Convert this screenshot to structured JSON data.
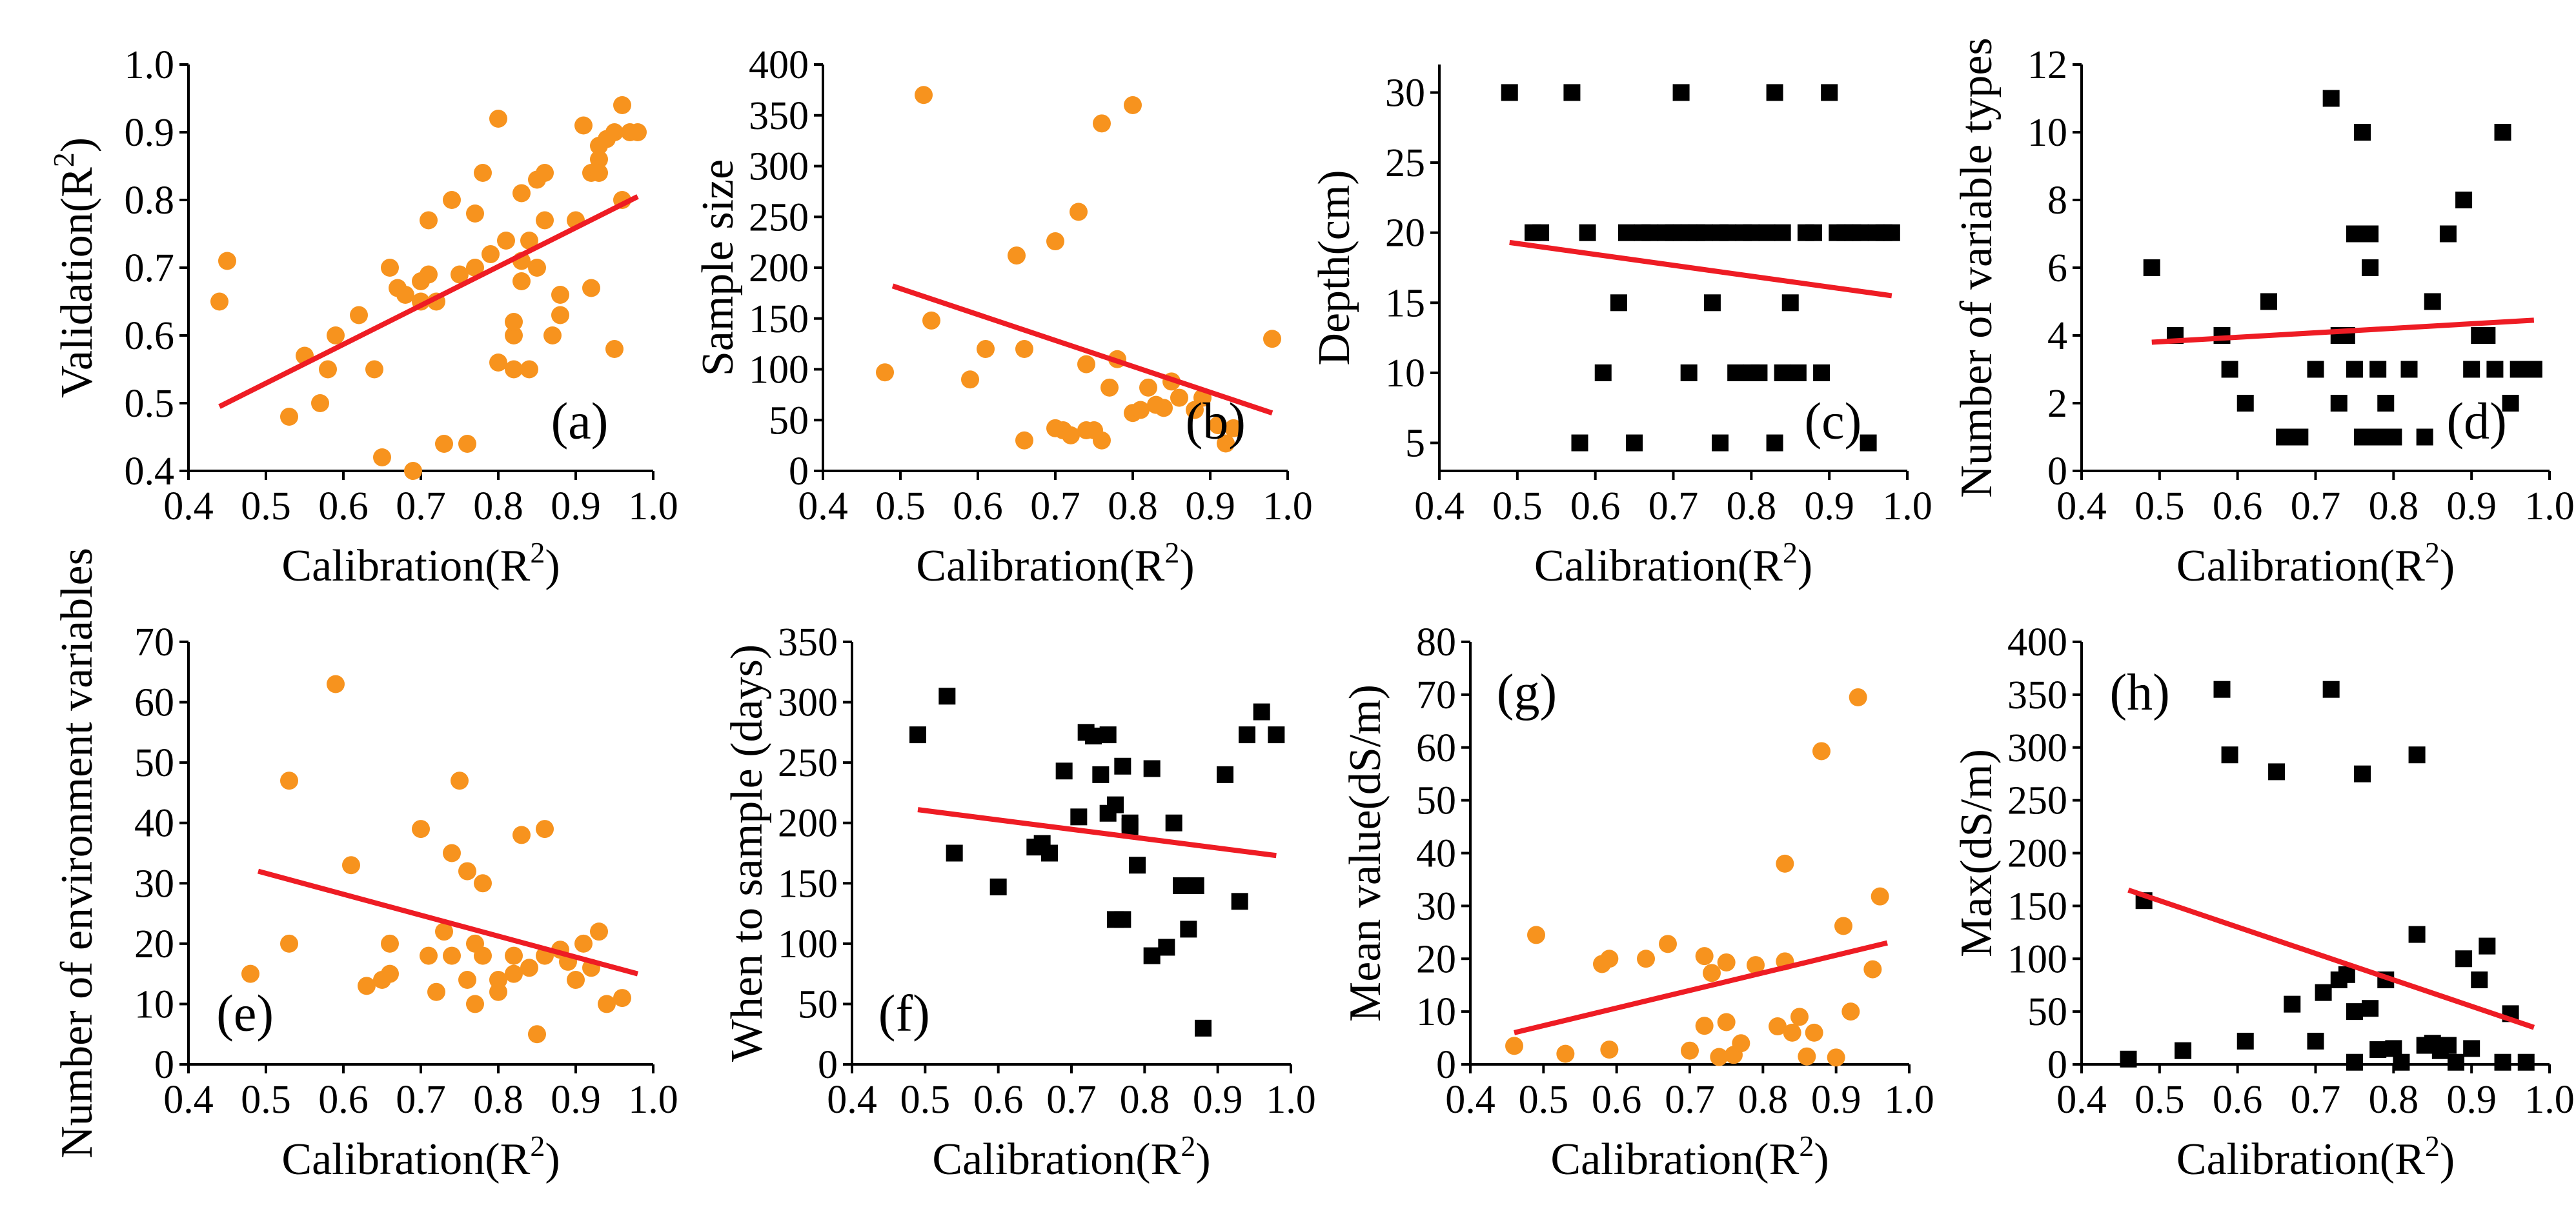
{
  "figure": {
    "colors": {
      "circle": "#f7931e",
      "square": "#000000",
      "fit_line": "#ee1c24"
    }
  },
  "chart_data": [
    {
      "type": "scatter",
      "panel_label": "(a)",
      "marker": "circle",
      "xlabel": "Calibration(R",
      "xlabel_sup": "2",
      "xlabel_suffix": ")",
      "ylabel": "Validation(R",
      "ylabel_sup": "2",
      "ylabel_suffix": ")",
      "xlim": [
        0.4,
        1.0
      ],
      "ylim": [
        0.4,
        1.0
      ],
      "xticks": [
        "0.4",
        "0.5",
        "0.6",
        "0.7",
        "0.8",
        "0.9",
        "1.0"
      ],
      "yticks": [
        "0.4",
        "0.5",
        "0.6",
        "0.7",
        "0.8",
        "0.9",
        "1.0"
      ],
      "label_position": "bottom-right",
      "x": [
        0.44,
        0.45,
        0.53,
        0.55,
        0.57,
        0.58,
        0.59,
        0.62,
        0.64,
        0.65,
        0.66,
        0.67,
        0.68,
        0.69,
        0.7,
        0.7,
        0.71,
        0.71,
        0.72,
        0.73,
        0.74,
        0.75,
        0.76,
        0.77,
        0.77,
        0.78,
        0.79,
        0.8,
        0.8,
        0.81,
        0.82,
        0.82,
        0.82,
        0.83,
        0.83,
        0.83,
        0.84,
        0.84,
        0.85,
        0.85,
        0.86,
        0.86,
        0.87,
        0.88,
        0.88,
        0.9,
        0.91,
        0.92,
        0.92,
        0.93,
        0.93,
        0.93,
        0.94,
        0.95,
        0.95,
        0.96,
        0.96,
        0.97,
        0.98
      ],
      "y": [
        0.65,
        0.71,
        0.48,
        0.57,
        0.5,
        0.55,
        0.6,
        0.63,
        0.55,
        0.42,
        0.7,
        0.67,
        0.66,
        0.4,
        0.68,
        0.65,
        0.69,
        0.77,
        0.65,
        0.44,
        0.8,
        0.69,
        0.44,
        0.7,
        0.78,
        0.84,
        0.72,
        0.56,
        0.92,
        0.74,
        0.55,
        0.6,
        0.62,
        0.68,
        0.71,
        0.81,
        0.55,
        0.74,
        0.7,
        0.83,
        0.77,
        0.84,
        0.6,
        0.63,
        0.66,
        0.77,
        0.91,
        0.67,
        0.84,
        0.88,
        0.86,
        0.84,
        0.89,
        0.58,
        0.9,
        0.8,
        0.94,
        0.9,
        0.9
      ],
      "fit": {
        "x": [
          0.44,
          0.98
        ],
        "y": [
          0.495,
          0.805
        ]
      }
    },
    {
      "type": "scatter",
      "panel_label": "(b)",
      "marker": "circle",
      "xlabel": "Calibration(R",
      "xlabel_sup": "2",
      "xlabel_suffix": ")",
      "ylabel": "Sample size",
      "ylabel_sup": "",
      "ylabel_suffix": "",
      "xlim": [
        0.4,
        1.0
      ],
      "ylim": [
        0,
        400
      ],
      "xticks": [
        "0.4",
        "0.5",
        "0.6",
        "0.7",
        "0.8",
        "0.9",
        "1.0"
      ],
      "yticks": [
        "0",
        "50",
        "100",
        "150",
        "200",
        "250",
        "300",
        "350",
        "400"
      ],
      "label_position": "bottom-right",
      "x": [
        0.48,
        0.53,
        0.54,
        0.59,
        0.61,
        0.65,
        0.66,
        0.66,
        0.7,
        0.7,
        0.71,
        0.72,
        0.73,
        0.74,
        0.74,
        0.75,
        0.76,
        0.76,
        0.77,
        0.78,
        0.8,
        0.8,
        0.81,
        0.82,
        0.83,
        0.84,
        0.85,
        0.86,
        0.88,
        0.89,
        0.91,
        0.92,
        0.93,
        0.98
      ],
      "y": [
        97,
        370,
        148,
        90,
        120,
        212,
        30,
        120,
        42,
        226,
        40,
        35,
        255,
        40,
        105,
        40,
        30,
        342,
        82,
        110,
        360,
        57,
        60,
        82,
        65,
        62,
        88,
        72,
        60,
        72,
        45,
        27,
        42,
        130
      ],
      "fit": {
        "x": [
          0.49,
          0.98
        ],
        "y": [
          182,
          57
        ]
      }
    },
    {
      "type": "scatter",
      "panel_label": "(c)",
      "marker": "square",
      "xlabel": "Calibration(R",
      "xlabel_sup": "2",
      "xlabel_suffix": ")",
      "ylabel": "Depth(cm)",
      "ylabel_sup": "",
      "ylabel_suffix": "",
      "xlim": [
        0.4,
        1.0
      ],
      "ylim": [
        3,
        32
      ],
      "xticks": [
        "0.4",
        "0.5",
        "0.6",
        "0.7",
        "0.8",
        "0.9",
        "1.0"
      ],
      "yticks": [
        "5",
        "10",
        "15",
        "20",
        "25",
        "30"
      ],
      "label_position": "bottom-right",
      "x": [
        0.49,
        0.52,
        0.53,
        0.57,
        0.58,
        0.59,
        0.61,
        0.63,
        0.64,
        0.65,
        0.66,
        0.67,
        0.69,
        0.7,
        0.71,
        0.71,
        0.72,
        0.72,
        0.73,
        0.74,
        0.75,
        0.76,
        0.76,
        0.77,
        0.78,
        0.79,
        0.8,
        0.8,
        0.81,
        0.82,
        0.83,
        0.83,
        0.84,
        0.84,
        0.85,
        0.86,
        0.87,
        0.88,
        0.89,
        0.9,
        0.91,
        0.92,
        0.93,
        0.94,
        0.95,
        0.96,
        0.97,
        0.98
      ],
      "y": [
        30,
        20,
        20,
        30,
        5,
        20,
        10,
        15,
        20,
        5,
        20,
        20,
        20,
        20,
        30,
        20,
        20,
        10,
        20,
        20,
        15,
        5,
        20,
        20,
        10,
        20,
        10,
        20,
        10,
        20,
        30,
        5,
        10,
        20,
        15,
        10,
        20,
        20,
        10,
        30,
        20,
        20,
        20,
        20,
        5,
        20,
        20,
        20
      ],
      "fit": {
        "x": [
          0.49,
          0.98
        ],
        "y": [
          19.3,
          15.5
        ]
      }
    },
    {
      "type": "scatter",
      "panel_label": "(d)",
      "marker": "square",
      "xlabel": "Calibration(R",
      "xlabel_sup": "2",
      "xlabel_suffix": ")",
      "ylabel": "Number of variable types",
      "ylabel_sup": "",
      "ylabel_suffix": "",
      "xlim": [
        0.4,
        1.0
      ],
      "ylim": [
        0,
        12
      ],
      "xticks": [
        "0.4",
        "0.5",
        "0.6",
        "0.7",
        "0.8",
        "0.9",
        "1.0"
      ],
      "yticks": [
        "0",
        "2",
        "4",
        "6",
        "8",
        "10",
        "12"
      ],
      "label_position": "bottom-right",
      "x": [
        0.49,
        0.52,
        0.58,
        0.59,
        0.61,
        0.64,
        0.66,
        0.68,
        0.7,
        0.72,
        0.73,
        0.73,
        0.74,
        0.75,
        0.75,
        0.76,
        0.76,
        0.77,
        0.77,
        0.78,
        0.78,
        0.79,
        0.8,
        0.82,
        0.84,
        0.85,
        0.87,
        0.89,
        0.9,
        0.91,
        0.92,
        0.93,
        0.94,
        0.95,
        0.96,
        0.98
      ],
      "y": [
        6,
        4,
        4,
        3,
        2,
        5,
        1,
        1,
        3,
        11,
        4,
        2,
        4,
        3,
        7,
        1,
        10,
        6,
        7,
        3,
        1,
        2,
        1,
        3,
        1,
        5,
        7,
        8,
        3,
        4,
        4,
        3,
        10,
        2,
        3,
        3
      ],
      "fit": {
        "x": [
          0.49,
          0.98
        ],
        "y": [
          3.8,
          4.45
        ]
      }
    },
    {
      "type": "scatter",
      "panel_label": "(e)",
      "marker": "circle",
      "xlabel": "Calibration(R",
      "xlabel_sup": "2",
      "xlabel_suffix": ")",
      "ylabel": "Number of environment variables",
      "ylabel_sup": "",
      "ylabel_suffix": "",
      "xlim": [
        0.4,
        1.0
      ],
      "ylim": [
        0,
        70
      ],
      "xticks": [
        "0.4",
        "0.5",
        "0.6",
        "0.7",
        "0.8",
        "0.9",
        "1.0"
      ],
      "yticks": [
        "0",
        "10",
        "20",
        "30",
        "40",
        "50",
        "60",
        "70"
      ],
      "label_position": "bottom-left",
      "x": [
        0.48,
        0.53,
        0.53,
        0.59,
        0.61,
        0.63,
        0.65,
        0.66,
        0.66,
        0.7,
        0.71,
        0.72,
        0.73,
        0.74,
        0.74,
        0.75,
        0.76,
        0.76,
        0.77,
        0.77,
        0.78,
        0.78,
        0.8,
        0.8,
        0.82,
        0.82,
        0.83,
        0.84,
        0.85,
        0.86,
        0.86,
        0.88,
        0.89,
        0.9,
        0.91,
        0.92,
        0.93,
        0.94,
        0.96
      ],
      "y": [
        15,
        47,
        20,
        63,
        33,
        13,
        14,
        15,
        20,
        39,
        18,
        12,
        22,
        35,
        18,
        47,
        32,
        14,
        10,
        20,
        30,
        18,
        12,
        14,
        15,
        18,
        38,
        16,
        5,
        39,
        18,
        19,
        17,
        14,
        20,
        16,
        22,
        10,
        11
      ],
      "fit": {
        "x": [
          0.49,
          0.98
        ],
        "y": [
          32,
          15
        ]
      }
    },
    {
      "type": "scatter",
      "panel_label": "(f)",
      "marker": "square",
      "xlabel": "Calibration(R",
      "xlabel_sup": "2",
      "xlabel_suffix": ")",
      "ylabel": "When to sample (days)",
      "ylabel_sup": "",
      "ylabel_suffix": "",
      "xlim": [
        0.4,
        1.0
      ],
      "ylim": [
        0,
        350
      ],
      "xticks": [
        "0.4",
        "0.5",
        "0.6",
        "0.7",
        "0.8",
        "0.9",
        "1.0"
      ],
      "yticks": [
        "0",
        "50",
        "100",
        "150",
        "200",
        "250",
        "300",
        "350"
      ],
      "label_position": "bottom-left",
      "x": [
        0.49,
        0.53,
        0.54,
        0.6,
        0.65,
        0.66,
        0.67,
        0.69,
        0.71,
        0.72,
        0.73,
        0.74,
        0.75,
        0.75,
        0.76,
        0.76,
        0.77,
        0.77,
        0.78,
        0.78,
        0.79,
        0.81,
        0.81,
        0.83,
        0.84,
        0.85,
        0.86,
        0.87,
        0.88,
        0.91,
        0.93,
        0.94,
        0.96,
        0.98
      ],
      "y": [
        273,
        305,
        175,
        147,
        180,
        183,
        175,
        243,
        205,
        275,
        272,
        240,
        273,
        208,
        120,
        215,
        120,
        247,
        200,
        197,
        165,
        90,
        245,
        97,
        200,
        148,
        112,
        148,
        30,
        240,
        135,
        273,
        292,
        273
      ],
      "fit": {
        "x": [
          0.49,
          0.98
        ],
        "y": [
          211,
          173
        ]
      }
    },
    {
      "type": "scatter",
      "panel_label": "(g)",
      "marker": "circle",
      "xlabel": "Calibration(R",
      "xlabel_sup": "2",
      "xlabel_suffix": ")",
      "ylabel": "Mean value(dS/m)",
      "ylabel_sup": "",
      "ylabel_suffix": "",
      "xlim": [
        0.4,
        1.0
      ],
      "ylim": [
        0,
        80
      ],
      "xticks": [
        "0.4",
        "0.5",
        "0.6",
        "0.7",
        "0.8",
        "0.9",
        "1.0"
      ],
      "yticks": [
        "0",
        "10",
        "20",
        "30",
        "40",
        "50",
        "60",
        "70",
        "80"
      ],
      "label_position": "top-left",
      "x": [
        0.46,
        0.49,
        0.53,
        0.58,
        0.59,
        0.59,
        0.64,
        0.67,
        0.7,
        0.72,
        0.72,
        0.73,
        0.74,
        0.75,
        0.75,
        0.76,
        0.77,
        0.79,
        0.82,
        0.83,
        0.83,
        0.84,
        0.85,
        0.86,
        0.87,
        0.88,
        0.9,
        0.91,
        0.92,
        0.93,
        0.95,
        0.96
      ],
      "y": [
        3.5,
        24.5,
        2,
        19,
        20,
        2.8,
        20,
        22.8,
        2.6,
        20.5,
        7.3,
        17.3,
        1.4,
        8,
        19.3,
        1.8,
        4,
        18.8,
        7.2,
        19.5,
        38,
        6,
        9,
        1.5,
        6,
        59.3,
        1.3,
        26.2,
        10,
        69.5,
        18,
        31.8
      ],
      "fit": {
        "x": [
          0.46,
          0.97
        ],
        "y": [
          6,
          23
        ]
      }
    },
    {
      "type": "scatter",
      "panel_label": "(h)",
      "marker": "square",
      "xlabel": "Calibration(R",
      "xlabel_sup": "2",
      "xlabel_suffix": ")",
      "ylabel": "Max(dS/m)",
      "ylabel_sup": "",
      "ylabel_suffix": "",
      "xlim": [
        0.4,
        1.0
      ],
      "ylim": [
        0,
        400
      ],
      "xticks": [
        "0.4",
        "0.5",
        "0.6",
        "0.7",
        "0.8",
        "0.9",
        "1.0"
      ],
      "yticks": [
        "0",
        "50",
        "100",
        "150",
        "200",
        "250",
        "300",
        "350",
        "400"
      ],
      "label_position": "top-left",
      "x": [
        0.46,
        0.48,
        0.53,
        0.58,
        0.59,
        0.61,
        0.65,
        0.67,
        0.7,
        0.71,
        0.72,
        0.73,
        0.74,
        0.75,
        0.75,
        0.76,
        0.77,
        0.78,
        0.79,
        0.8,
        0.81,
        0.83,
        0.83,
        0.84,
        0.85,
        0.86,
        0.87,
        0.88,
        0.89,
        0.9,
        0.91,
        0.92,
        0.94,
        0.95,
        0.97
      ],
      "y": [
        5,
        155,
        13,
        355,
        293,
        22,
        277,
        57,
        22,
        68,
        355,
        80,
        85,
        50,
        2,
        275,
        53,
        14,
        80,
        15,
        2,
        293,
        123,
        18,
        20,
        13,
        18,
        2,
        100,
        15,
        80,
        112,
        2,
        48,
        2
      ],
      "fit": {
        "x": [
          0.46,
          0.98
        ],
        "y": [
          165,
          35
        ]
      }
    }
  ]
}
